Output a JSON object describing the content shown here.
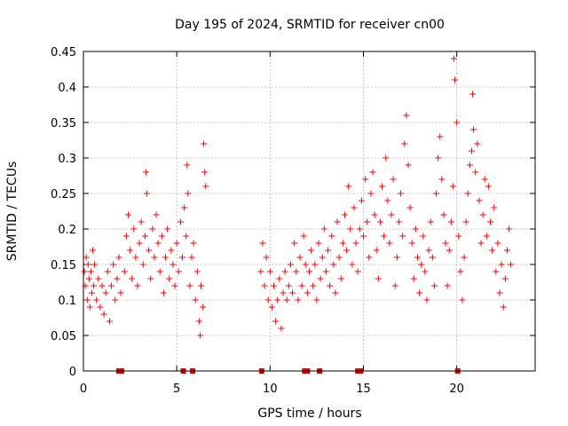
{
  "chart_data": {
    "type": "scatter",
    "title": "Day 195 of 2024, SRMTID for receiver cn00",
    "xlabel": "GPS time / hours",
    "ylabel": "SRMTID / TECUs",
    "xlim": [
      0,
      24.2
    ],
    "ylim": [
      0,
      0.45
    ],
    "xticks": [
      0,
      5,
      10,
      15,
      20
    ],
    "xtick_labels": [
      "0",
      "5",
      "10",
      "15",
      "20"
    ],
    "yticks": [
      0,
      0.05,
      0.1,
      0.15,
      0.2,
      0.25,
      0.3,
      0.35,
      0.4,
      0.45
    ],
    "ytick_labels": [
      "0",
      "0.05",
      "0.1",
      "0.15",
      "0.2",
      "0.25",
      "0.3",
      "0.35",
      "0.4",
      "0.45"
    ],
    "grid": true,
    "marker": "+",
    "color": "#ff0000",
    "series": [
      {
        "name": "SRMTID",
        "points": [
          [
            0.05,
            0.14
          ],
          [
            0.1,
            0.12
          ],
          [
            0.15,
            0.16
          ],
          [
            0.2,
            0.1
          ],
          [
            0.25,
            0.15
          ],
          [
            0.3,
            0.13
          ],
          [
            0.35,
            0.09
          ],
          [
            0.4,
            0.14
          ],
          [
            0.45,
            0.11
          ],
          [
            0.5,
            0.17
          ],
          [
            0.55,
            0.12
          ],
          [
            0.6,
            0.15
          ],
          [
            0.7,
            0.1
          ],
          [
            0.8,
            0.13
          ],
          [
            0.9,
            0.09
          ],
          [
            1.0,
            0.12
          ],
          [
            1.1,
            0.08
          ],
          [
            1.2,
            0.11
          ],
          [
            1.3,
            0.14
          ],
          [
            1.4,
            0.07
          ],
          [
            1.5,
            0.12
          ],
          [
            1.6,
            0.15
          ],
          [
            1.7,
            0.1
          ],
          [
            1.8,
            0.13
          ],
          [
            1.9,
            0.16
          ],
          [
            2.0,
            0.11
          ],
          [
            2.2,
            0.14
          ],
          [
            2.3,
            0.19
          ],
          [
            2.4,
            0.22
          ],
          [
            2.5,
            0.17
          ],
          [
            2.6,
            0.13
          ],
          [
            2.7,
            0.2
          ],
          [
            2.8,
            0.16
          ],
          [
            2.9,
            0.12
          ],
          [
            3.0,
            0.18
          ],
          [
            3.1,
            0.21
          ],
          [
            3.2,
            0.15
          ],
          [
            3.3,
            0.19
          ],
          [
            3.35,
            0.28
          ],
          [
            3.4,
            0.25
          ],
          [
            3.5,
            0.17
          ],
          [
            3.6,
            0.13
          ],
          [
            3.7,
            0.2
          ],
          [
            3.8,
            0.16
          ],
          [
            3.9,
            0.22
          ],
          [
            4.0,
            0.18
          ],
          [
            4.1,
            0.14
          ],
          [
            4.2,
            0.19
          ],
          [
            4.3,
            0.11
          ],
          [
            4.4,
            0.16
          ],
          [
            4.5,
            0.2
          ],
          [
            4.6,
            0.13
          ],
          [
            4.7,
            0.17
          ],
          [
            4.8,
            0.15
          ],
          [
            4.9,
            0.12
          ],
          [
            5.0,
            0.18
          ],
          [
            5.1,
            0.14
          ],
          [
            5.2,
            0.21
          ],
          [
            5.3,
            0.16
          ],
          [
            5.4,
            0.23
          ],
          [
            5.5,
            0.19
          ],
          [
            5.55,
            0.29
          ],
          [
            5.6,
            0.25
          ],
          [
            5.7,
            0.12
          ],
          [
            5.8,
            0.16
          ],
          [
            5.9,
            0.18
          ],
          [
            6.0,
            0.1
          ],
          [
            6.1,
            0.14
          ],
          [
            6.2,
            0.07
          ],
          [
            6.25,
            0.05
          ],
          [
            6.3,
            0.12
          ],
          [
            6.4,
            0.09
          ],
          [
            6.45,
            0.32
          ],
          [
            6.5,
            0.28
          ],
          [
            6.55,
            0.26
          ],
          [
            9.5,
            0.14
          ],
          [
            9.6,
            0.18
          ],
          [
            9.7,
            0.12
          ],
          [
            9.8,
            0.16
          ],
          [
            9.9,
            0.1
          ],
          [
            10.0,
            0.14
          ],
          [
            10.1,
            0.09
          ],
          [
            10.2,
            0.12
          ],
          [
            10.3,
            0.07
          ],
          [
            10.4,
            0.1
          ],
          [
            10.5,
            0.13
          ],
          [
            10.6,
            0.06
          ],
          [
            10.7,
            0.11
          ],
          [
            10.8,
            0.14
          ],
          [
            10.9,
            0.1
          ],
          [
            11.0,
            0.12
          ],
          [
            11.1,
            0.15
          ],
          [
            11.2,
            0.11
          ],
          [
            11.3,
            0.18
          ],
          [
            11.4,
            0.14
          ],
          [
            11.5,
            0.1
          ],
          [
            11.6,
            0.16
          ],
          [
            11.7,
            0.12
          ],
          [
            11.8,
            0.19
          ],
          [
            11.9,
            0.15
          ],
          [
            12.0,
            0.11
          ],
          [
            12.1,
            0.14
          ],
          [
            12.2,
            0.17
          ],
          [
            12.3,
            0.12
          ],
          [
            12.4,
            0.15
          ],
          [
            12.5,
            0.1
          ],
          [
            12.6,
            0.18
          ],
          [
            12.7,
            0.13
          ],
          [
            12.8,
            0.16
          ],
          [
            12.9,
            0.2
          ],
          [
            13.0,
            0.14
          ],
          [
            13.1,
            0.17
          ],
          [
            13.2,
            0.12
          ],
          [
            13.3,
            0.19
          ],
          [
            13.4,
            0.15
          ],
          [
            13.5,
            0.11
          ],
          [
            13.6,
            0.21
          ],
          [
            13.7,
            0.16
          ],
          [
            13.8,
            0.13
          ],
          [
            13.9,
            0.18
          ],
          [
            14.0,
            0.22
          ],
          [
            14.1,
            0.17
          ],
          [
            14.2,
            0.26
          ],
          [
            14.3,
            0.2
          ],
          [
            14.4,
            0.15
          ],
          [
            14.5,
            0.23
          ],
          [
            14.6,
            0.18
          ],
          [
            14.7,
            0.14
          ],
          [
            14.8,
            0.2
          ],
          [
            14.9,
            0.24
          ],
          [
            15.0,
            0.19
          ],
          [
            15.1,
            0.27
          ],
          [
            15.2,
            0.21
          ],
          [
            15.3,
            0.16
          ],
          [
            15.4,
            0.25
          ],
          [
            15.5,
            0.28
          ],
          [
            15.6,
            0.22
          ],
          [
            15.7,
            0.17
          ],
          [
            15.8,
            0.13
          ],
          [
            15.9,
            0.21
          ],
          [
            16.0,
            0.26
          ],
          [
            16.1,
            0.19
          ],
          [
            16.2,
            0.3
          ],
          [
            16.3,
            0.24
          ],
          [
            16.4,
            0.18
          ],
          [
            16.5,
            0.22
          ],
          [
            16.6,
            0.27
          ],
          [
            16.7,
            0.12
          ],
          [
            16.8,
            0.16
          ],
          [
            16.9,
            0.21
          ],
          [
            17.0,
            0.25
          ],
          [
            17.1,
            0.19
          ],
          [
            17.2,
            0.32
          ],
          [
            17.3,
            0.36
          ],
          [
            17.4,
            0.29
          ],
          [
            17.5,
            0.23
          ],
          [
            17.6,
            0.18
          ],
          [
            17.7,
            0.13
          ],
          [
            17.8,
            0.2
          ],
          [
            17.9,
            0.16
          ],
          [
            18.0,
            0.11
          ],
          [
            18.1,
            0.15
          ],
          [
            18.2,
            0.19
          ],
          [
            18.3,
            0.14
          ],
          [
            18.4,
            0.1
          ],
          [
            18.5,
            0.17
          ],
          [
            18.6,
            0.21
          ],
          [
            18.7,
            0.16
          ],
          [
            18.8,
            0.12
          ],
          [
            18.9,
            0.25
          ],
          [
            19.0,
            0.3
          ],
          [
            19.1,
            0.33
          ],
          [
            19.2,
            0.27
          ],
          [
            19.3,
            0.22
          ],
          [
            19.4,
            0.18
          ],
          [
            19.5,
            0.12
          ],
          [
            19.6,
            0.17
          ],
          [
            19.7,
            0.21
          ],
          [
            19.8,
            0.26
          ],
          [
            19.85,
            0.44
          ],
          [
            19.9,
            0.41
          ],
          [
            20.0,
            0.35
          ],
          [
            20.1,
            0.19
          ],
          [
            20.2,
            0.14
          ],
          [
            20.3,
            0.1
          ],
          [
            20.4,
            0.16
          ],
          [
            20.5,
            0.21
          ],
          [
            20.6,
            0.25
          ],
          [
            20.7,
            0.29
          ],
          [
            20.8,
            0.31
          ],
          [
            20.85,
            0.39
          ],
          [
            20.9,
            0.34
          ],
          [
            21.0,
            0.28
          ],
          [
            21.1,
            0.32
          ],
          [
            21.2,
            0.24
          ],
          [
            21.3,
            0.18
          ],
          [
            21.4,
            0.22
          ],
          [
            21.5,
            0.27
          ],
          [
            21.6,
            0.19
          ],
          [
            21.7,
            0.26
          ],
          [
            21.8,
            0.21
          ],
          [
            21.9,
            0.17
          ],
          [
            22.0,
            0.23
          ],
          [
            22.1,
            0.14
          ],
          [
            22.2,
            0.18
          ],
          [
            22.3,
            0.11
          ],
          [
            22.4,
            0.15
          ],
          [
            22.5,
            0.09
          ],
          [
            22.6,
            0.13
          ],
          [
            22.7,
            0.17
          ],
          [
            22.8,
            0.2
          ],
          [
            22.9,
            0.15
          ]
        ]
      }
    ],
    "gap_markers_x": [
      1.9,
      2.05,
      5.35,
      5.85,
      9.55,
      11.85,
      12.0,
      12.65,
      14.7,
      14.85,
      20.05
    ]
  }
}
